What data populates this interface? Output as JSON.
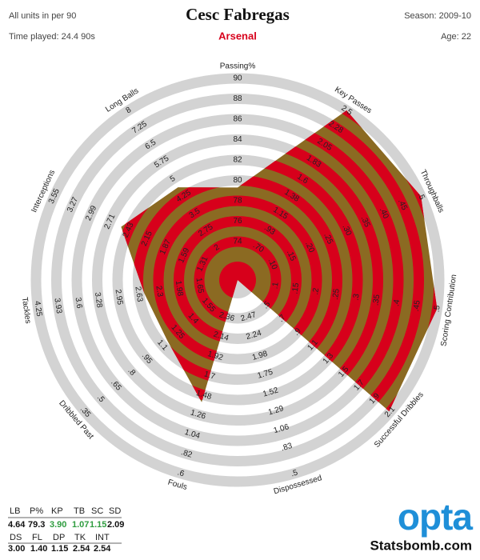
{
  "chart_data": {
    "type": "radar",
    "title": "Cesc Fabregas",
    "subtitle": "Arsenal",
    "units_note": "All units in per 90",
    "time_played": "Time played: 24.4 90s",
    "season": "Season: 2009-10",
    "age": "Age: 22",
    "categories": [
      "Passing%",
      "Key Passes",
      "Throughballs",
      "Scoring Contribution",
      "Successful Dribbles",
      "Dispossessed",
      "Fouls",
      "Dribbled Past",
      "Tackles",
      "Interceptions",
      "Long Balls"
    ],
    "abbreviations": [
      "P%",
      "KP",
      "TB",
      "SC",
      "SD",
      "DS",
      "FL",
      "DP",
      "TK",
      "INT",
      "LB"
    ],
    "values": [
      79.3,
      3.9,
      1.07,
      1.15,
      2.09,
      3.0,
      1.4,
      1.15,
      2.54,
      2.54,
      4.64
    ],
    "value_labels": [
      "79.3",
      "3.90",
      "1.07",
      "1.15",
      "2.09",
      "3.00",
      "1.40",
      "1.15",
      "2.54",
      "2.54",
      "4.64"
    ],
    "value_label_colors": [
      "#111111",
      "#2e9c3f",
      "#2e9c3f",
      "#2e9c3f",
      "#111111",
      "#111111",
      "#111111",
      "#111111",
      "#111111",
      "#111111",
      "#111111"
    ],
    "ticks": [
      [
        74,
        76,
        78,
        80,
        82,
        84,
        86,
        88,
        90
      ],
      [
        {
          "value": 0.7,
          "label": ".70"
        },
        {
          "value": 0.93,
          "label": ".93"
        },
        1.15,
        1.38,
        1.6,
        1.83,
        2.05,
        2.28,
        2.5
      ],
      [
        {
          "value": 0.1,
          "label": ".10"
        },
        {
          "value": 0.15,
          "label": ".15"
        },
        {
          "value": 0.2,
          "label": ".20"
        },
        {
          "value": 0.25,
          "label": ".25"
        },
        {
          "value": 0.3,
          "label": ".30"
        },
        {
          "value": 0.35,
          "label": ".35"
        },
        {
          "value": 0.4,
          "label": ".40"
        },
        {
          "value": 0.45,
          "label": ".45"
        },
        {
          "value": 0.5,
          "label": ".5"
        }
      ],
      [
        {
          "value": 0.1,
          "label": ".1"
        },
        {
          "value": 0.15,
          "label": ".15"
        },
        {
          "value": 0.2,
          "label": ".2"
        },
        {
          "value": 0.25,
          "label": ".25"
        },
        {
          "value": 0.3,
          "label": ".3"
        },
        {
          "value": 0.35,
          "label": ".35"
        },
        {
          "value": 0.4,
          "label": ".4"
        },
        {
          "value": 0.45,
          "label": ".45"
        },
        {
          "value": 0.5,
          "label": ".5"
        }
      ],
      [
        {
          "value": 0.5,
          "label": ".5"
        },
        {
          "value": 0.7,
          "label": ".7"
        },
        {
          "value": 0.9,
          "label": ".9"
        },
        1.1,
        1.3,
        1.5,
        1.7,
        1.9,
        2.1
      ],
      [
        2.47,
        2.24,
        1.98,
        1.75,
        1.52,
        1.29,
        1.06,
        {
          "value": 0.83,
          "label": ".83"
        },
        {
          "value": 0.5,
          "label": ".5"
        }
      ],
      [
        2.36,
        2.14,
        1.92,
        1.7,
        1.48,
        1.26,
        1.04,
        {
          "value": 0.82,
          "label": ".82"
        },
        {
          "value": 0.6,
          "label": ".6"
        }
      ],
      [
        1.55,
        1.4,
        1.25,
        1.1,
        {
          "value": 0.95,
          "label": ".95"
        },
        {
          "value": 0.8,
          "label": ".8"
        },
        {
          "value": 0.65,
          "label": ".65"
        },
        {
          "value": 0.5,
          "label": ".5"
        },
        {
          "value": 0.35,
          "label": ".35"
        }
      ],
      [
        1.65,
        1.98,
        2.3,
        2.63,
        2.95,
        3.28,
        3.6,
        3.93,
        4.25
      ],
      [
        1.31,
        1.59,
        1.87,
        2.15,
        2.43,
        2.71,
        2.99,
        3.27,
        3.55
      ],
      [
        2,
        2.75,
        3.5,
        4.25,
        5,
        5.75,
        6.5,
        7.25,
        8
      ]
    ],
    "fill_color": "#8b6a22",
    "ring_color": "#d3d3d3",
    "highlight_ring_color": "#d7001b",
    "brand": "opta",
    "brand_color": "#1f8fd8",
    "website": "Statsbomb.com"
  }
}
